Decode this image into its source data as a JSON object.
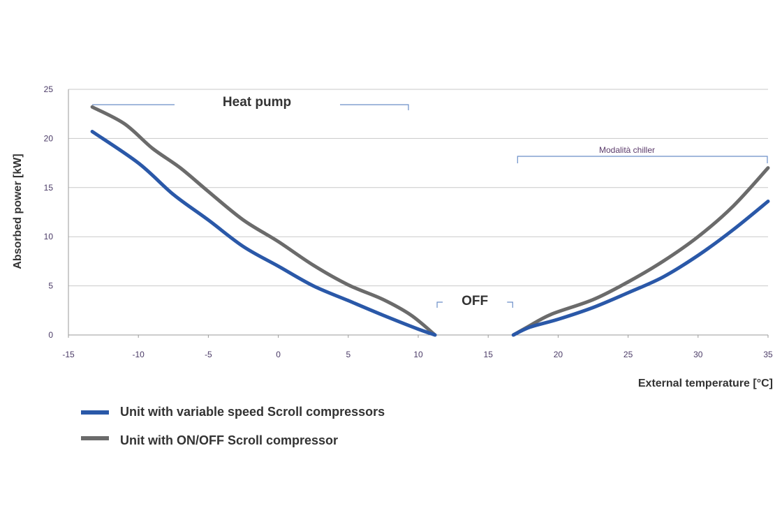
{
  "chart_data": {
    "type": "line",
    "title": "",
    "xlabel": "External temperature [°C]",
    "ylabel": "Absorbed power [kW]",
    "xlim": [
      -15,
      35
    ],
    "ylim": [
      0,
      25
    ],
    "x_ticks": [
      -15,
      -10,
      -5,
      0,
      5,
      10,
      15,
      20,
      25,
      30,
      35
    ],
    "y_ticks": [
      0,
      5,
      10,
      15,
      20,
      25
    ],
    "grid": "horizontal",
    "legend_position": "bottom-left",
    "series": [
      {
        "name": "Unit with variable speed Scroll compressors",
        "color": "#2a58a8",
        "segments": [
          {
            "x": [
              -13.3,
              -10,
              -7.5,
              -5,
              -2.5,
              0,
              2.5,
              5,
              7.5,
              10,
              11.2
            ],
            "y": [
              20.7,
              17.5,
              14.3,
              11.7,
              9.0,
              7.0,
              5.0,
              3.5,
              2.0,
              0.6,
              0.0
            ]
          },
          {
            "x": [
              16.8,
              18,
              20,
              22.5,
              25,
              27.5,
              30,
              32.5,
              35
            ],
            "y": [
              0.0,
              0.8,
              1.6,
              2.8,
              4.3,
              5.9,
              8.1,
              10.7,
              13.6
            ]
          }
        ]
      },
      {
        "name": "Unit with ON/OFF Scroll compressor",
        "color": "#6b6b6b",
        "segments": [
          {
            "x": [
              -13.3,
              -11,
              -9,
              -7,
              -5,
              -2.5,
              0,
              2.5,
              5,
              7.5,
              9.5,
              11.2
            ],
            "y": [
              23.2,
              21.5,
              19.0,
              17.0,
              14.6,
              11.7,
              9.5,
              7.1,
              5.1,
              3.6,
              2.0,
              0.0
            ]
          },
          {
            "x": [
              16.8,
              17.8,
              19.5,
              22.5,
              25,
              27.5,
              30,
              32.5,
              35
            ],
            "y": [
              0.0,
              0.8,
              2.1,
              3.6,
              5.4,
              7.5,
              10.0,
              13.1,
              17.0
            ]
          }
        ]
      }
    ],
    "annotations": [
      {
        "text": "Heat pump",
        "range": [
          -13.3,
          9.3
        ]
      },
      {
        "text": "OFF",
        "range": [
          11.3,
          16.8
        ]
      },
      {
        "text": "Modalità chiller",
        "range": [
          17.1,
          35
        ]
      }
    ]
  }
}
